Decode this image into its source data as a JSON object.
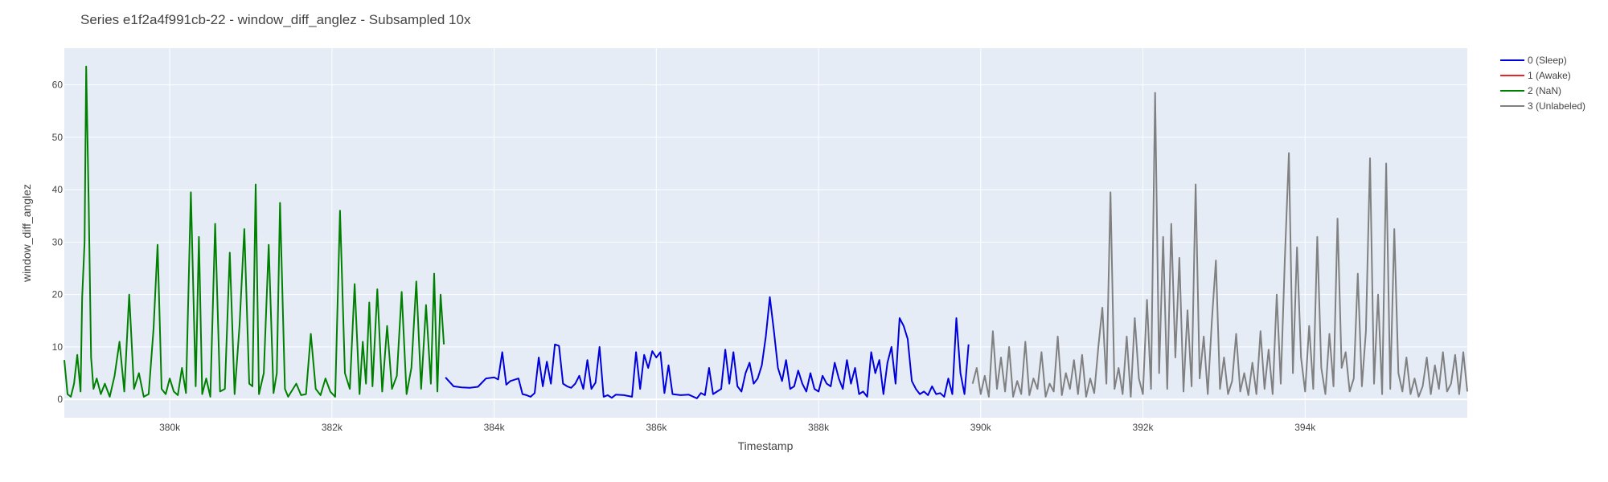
{
  "chart_data": {
    "type": "line",
    "title": "Series e1f2a4f991cb-22 - window_diff_anglez - Subsampled 10x",
    "xlabel": "Timestamp",
    "ylabel": "window_diff_anglez",
    "xlim": [
      378700,
      396000
    ],
    "ylim": [
      -3.5,
      67
    ],
    "x_ticks": [
      380000,
      382000,
      384000,
      386000,
      388000,
      390000,
      392000,
      394000
    ],
    "x_tick_labels": [
      "380k",
      "382k",
      "384k",
      "386k",
      "388k",
      "390k",
      "392k",
      "394k"
    ],
    "y_ticks": [
      0,
      10,
      20,
      30,
      40,
      50,
      60
    ],
    "y_tick_labels": [
      "0",
      "10",
      "20",
      "30",
      "40",
      "50",
      "60"
    ],
    "grid": true,
    "legend_position": "right",
    "colors": {
      "plot_bg": "#e5ecf6",
      "grid": "#ffffff",
      "sleep": "#0000dd",
      "awake": "#ee2222",
      "nan": "#008000",
      "unlabeled": "#808080"
    },
    "legend": [
      "0 (Sleep)",
      "1 (Awake)",
      "2 (NaN)",
      "3 (Unlabeled)"
    ],
    "series": [
      {
        "name": "0 (Sleep)",
        "color": "#0000dd",
        "x": [
          383400,
          383500,
          383600,
          383700,
          383800,
          383900,
          384000,
          384050,
          384100,
          384150,
          384200,
          384300,
          384350,
          384400,
          384450,
          384500,
          384550,
          384600,
          384650,
          384700,
          384750,
          384800,
          384850,
          384900,
          384950,
          385000,
          385050,
          385100,
          385150,
          385200,
          385250,
          385300,
          385350,
          385400,
          385450,
          385500,
          385600,
          385700,
          385750,
          385800,
          385850,
          385900,
          385950,
          386000,
          386050,
          386100,
          386150,
          386200,
          386300,
          386400,
          386500,
          386550,
          386600,
          386650,
          386700,
          386800,
          386850,
          386900,
          386950,
          387000,
          387050,
          387100,
          387150,
          387200,
          387250,
          387300,
          387350,
          387400,
          387450,
          387500,
          387550,
          387600,
          387650,
          387700,
          387750,
          387800,
          387850,
          387900,
          387950,
          388000,
          388050,
          388100,
          388150,
          388200,
          388250,
          388300,
          388350,
          388400,
          388450,
          388500,
          388550,
          388600,
          388650,
          388700,
          388750,
          388800,
          388850,
          388900,
          388950,
          389000,
          389050,
          389100,
          389150,
          389200,
          389250,
          389300,
          389350,
          389400,
          389450,
          389500,
          389550,
          389600,
          389650,
          389700,
          389750,
          389800,
          389850
        ],
        "y": [
          4.2,
          2.5,
          2.3,
          2.2,
          2.4,
          4.0,
          4.2,
          3.8,
          9.0,
          2.8,
          3.5,
          4.0,
          1.0,
          0.8,
          0.5,
          1.2,
          8.0,
          2.5,
          7.2,
          3.0,
          10.5,
          10.2,
          3.0,
          2.5,
          2.2,
          3.0,
          4.5,
          2.0,
          7.5,
          2.0,
          3.2,
          10.0,
          0.5,
          0.8,
          0.3,
          0.9,
          0.8,
          0.5,
          9.0,
          2.0,
          8.5,
          6.0,
          9.2,
          8.0,
          9.0,
          1.2,
          6.5,
          1.0,
          0.8,
          0.9,
          0.2,
          1.2,
          0.8,
          6.0,
          1.0,
          2.0,
          9.5,
          3.0,
          9.0,
          2.5,
          1.5,
          5.0,
          7.0,
          3.0,
          4.0,
          6.5,
          12.0,
          19.5,
          13.0,
          6.0,
          3.5,
          7.5,
          2.0,
          2.5,
          5.5,
          3.0,
          1.5,
          5.0,
          2.0,
          1.5,
          4.5,
          3.0,
          2.5,
          7.0,
          4.0,
          2.0,
          7.5,
          3.0,
          6.0,
          1.0,
          1.5,
          0.5,
          9.0,
          5.0,
          7.5,
          1.0,
          7.0,
          10.0,
          3.0,
          15.5,
          14.0,
          11.5,
          3.5,
          2.0,
          1.0,
          1.5,
          0.8,
          2.5,
          1.0,
          1.2,
          0.5,
          4.0,
          1.0,
          15.5,
          5.0,
          1.0,
          10.5
        ]
      },
      {
        "name": "1 (Awake)",
        "color": "#ee2222",
        "x": [],
        "y": []
      },
      {
        "name": "2 (NaN)",
        "color": "#008000",
        "x": [
          378700,
          378740,
          378780,
          378820,
          378860,
          378900,
          378920,
          378950,
          378970,
          379000,
          379030,
          379060,
          379100,
          379150,
          379200,
          379260,
          379320,
          379380,
          379440,
          379500,
          379560,
          379620,
          379680,
          379740,
          379800,
          379850,
          379900,
          379950,
          380000,
          380050,
          380100,
          380150,
          380200,
          380260,
          380320,
          380360,
          380400,
          380450,
          380500,
          380560,
          380620,
          380680,
          380740,
          380800,
          380860,
          380920,
          380980,
          381020,
          381060,
          381100,
          381160,
          381220,
          381280,
          381320,
          381360,
          381420,
          381460,
          381500,
          381560,
          381620,
          381680,
          381740,
          381800,
          381860,
          381920,
          381980,
          382040,
          382100,
          382160,
          382220,
          382280,
          382340,
          382380,
          382420,
          382460,
          382500,
          382560,
          382620,
          382680,
          382740,
          382800,
          382860,
          382920,
          382980,
          383040,
          383100,
          383160,
          383220,
          383260,
          383300,
          383340,
          383380
        ],
        "y": [
          7.5,
          1.0,
          0.5,
          3.0,
          8.5,
          1.5,
          19.5,
          30.0,
          63.5,
          37.5,
          8.0,
          2.0,
          4.0,
          1.0,
          3.0,
          0.5,
          4.5,
          11.0,
          1.5,
          20.0,
          2.0,
          5.0,
          0.5,
          1.0,
          13.5,
          29.5,
          2.0,
          1.0,
          4.0,
          1.5,
          0.8,
          6.0,
          1.2,
          39.5,
          2.5,
          31.0,
          1.0,
          4.0,
          0.5,
          33.5,
          1.5,
          2.0,
          28.0,
          1.0,
          14.0,
          32.5,
          3.0,
          2.5,
          41.0,
          1.0,
          5.0,
          29.5,
          1.2,
          5.0,
          37.5,
          2.0,
          0.5,
          1.5,
          3.0,
          0.8,
          1.0,
          12.5,
          2.0,
          0.8,
          4.0,
          1.5,
          0.5,
          36.0,
          5.0,
          2.0,
          22.0,
          1.0,
          11.0,
          3.0,
          18.5,
          2.5,
          21.0,
          1.5,
          14.0,
          2.0,
          4.5,
          20.5,
          1.0,
          6.0,
          22.5,
          2.0,
          18.0,
          3.0,
          24.0,
          1.5,
          20.0,
          10.5
        ]
      },
      {
        "name": "3 (Unlabeled)",
        "color": "#808080",
        "x": [
          389900,
          389950,
          390000,
          390050,
          390100,
          390150,
          390200,
          390250,
          390300,
          390350,
          390400,
          390450,
          390500,
          390550,
          390600,
          390650,
          390700,
          390750,
          390800,
          390850,
          390900,
          390950,
          391000,
          391050,
          391100,
          391150,
          391200,
          391250,
          391300,
          391350,
          391400,
          391450,
          391500,
          391550,
          391600,
          391650,
          391700,
          391750,
          391800,
          391850,
          391900,
          391950,
          392000,
          392050,
          392100,
          392150,
          392200,
          392250,
          392300,
          392350,
          392400,
          392450,
          392500,
          392550,
          392600,
          392650,
          392700,
          392750,
          392800,
          392850,
          392900,
          392950,
          393000,
          393050,
          393100,
          393150,
          393200,
          393250,
          393300,
          393350,
          393400,
          393450,
          393500,
          393550,
          393600,
          393650,
          393700,
          393750,
          393800,
          393850,
          393900,
          393950,
          394000,
          394050,
          394100,
          394150,
          394200,
          394250,
          394300,
          394350,
          394400,
          394450,
          394500,
          394550,
          394600,
          394650,
          394700,
          394750,
          394800,
          394850,
          394900,
          394950,
          395000,
          395050,
          395100,
          395150,
          395200,
          395250,
          395300,
          395350,
          395400,
          395450,
          395500,
          395550,
          395600,
          395650,
          395700,
          395750,
          395800,
          395850,
          395900,
          395950,
          396000
        ],
        "y": [
          3.0,
          6.0,
          1.0,
          4.5,
          0.5,
          13.0,
          2.0,
          8.0,
          1.5,
          10.0,
          0.5,
          3.5,
          1.0,
          11.0,
          0.8,
          4.0,
          2.0,
          9.0,
          0.5,
          3.0,
          1.5,
          12.0,
          0.8,
          5.0,
          2.0,
          7.5,
          1.0,
          8.5,
          0.5,
          4.0,
          1.2,
          10.0,
          17.5,
          3.0,
          39.5,
          2.0,
          6.0,
          1.0,
          12.0,
          0.5,
          15.5,
          4.0,
          1.0,
          19.0,
          2.0,
          58.5,
          5.0,
          31.0,
          2.0,
          33.5,
          8.0,
          27.0,
          1.5,
          17.0,
          2.5,
          41.0,
          4.0,
          12.0,
          1.0,
          15.0,
          26.5,
          2.0,
          8.0,
          1.0,
          3.5,
          12.5,
          1.5,
          5.0,
          0.8,
          7.0,
          1.0,
          13.0,
          2.0,
          9.5,
          1.0,
          20.0,
          3.0,
          26.5,
          47.0,
          5.0,
          29.0,
          8.0,
          1.5,
          14.0,
          2.0,
          31.0,
          6.0,
          1.0,
          12.5,
          2.5,
          34.5,
          6.0,
          9.0,
          1.5,
          4.0,
          24.0,
          2.5,
          13.0,
          46.0,
          3.0,
          20.0,
          1.0,
          45.0,
          2.0,
          32.5,
          5.0,
          1.5,
          8.0,
          1.0,
          4.0,
          0.5,
          2.5,
          8.0,
          1.0,
          6.5,
          2.0,
          9.0,
          1.5,
          3.0,
          8.5,
          1.0,
          9.0,
          1.5
        ]
      }
    ]
  }
}
